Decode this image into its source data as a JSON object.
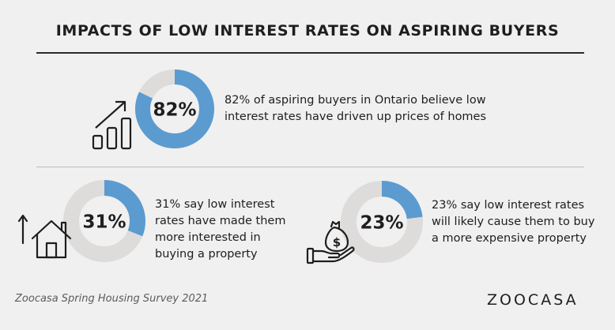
{
  "title": "IMPACTS OF LOW INTEREST RATES ON ASPIRING BUYERS",
  "colors": {
    "filled": "#5b9bd0",
    "track": "#dedbdb",
    "text": "#1e1e1e"
  },
  "chart_data": [
    {
      "type": "pie",
      "values": [
        82,
        18
      ],
      "label": "82%",
      "description": [
        "82% of aspiring buyers in Ontario believe low",
        "interest rates have driven up prices of homes"
      ],
      "icon": "rising-bar-chart-icon"
    },
    {
      "type": "pie",
      "values": [
        31,
        69
      ],
      "label": "31%",
      "description": [
        "31% say low interest",
        "rates have made them",
        "more interested in",
        "buying a property"
      ],
      "icon": "house-with-up-arrow-icon"
    },
    {
      "type": "pie",
      "values": [
        23,
        77
      ],
      "label": "23%",
      "description": [
        "23% say low interest rates",
        "will likely cause them to buy",
        "a more expensive property"
      ],
      "icon": "hand-with-money-bag-icon"
    }
  ],
  "money_bag_symbol": "$",
  "source": "Zoocasa Spring Housing Survey 2021",
  "brand": "ZOOCASA"
}
